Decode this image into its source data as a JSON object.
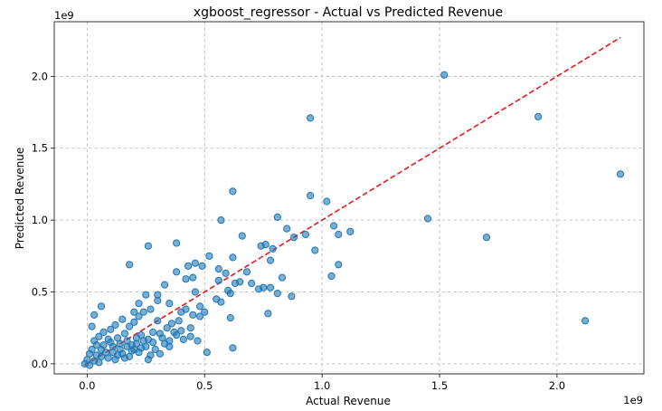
{
  "chart_data": {
    "type": "scatter",
    "title": "xgboost_regressor - Actual vs Predicted Revenue",
    "xlabel": "Actual Revenue",
    "ylabel": "Predicted Revenue",
    "x_offset_label": "1e9",
    "y_offset_label": "1e9",
    "xlim": [
      -0.14,
      2.37
    ],
    "ylim": [
      -0.07,
      2.38
    ],
    "x_ticks": [
      0.0,
      0.5,
      1.0,
      1.5,
      2.0
    ],
    "x_tick_labels": [
      "0.0",
      "0.5",
      "1.0",
      "1.5",
      "2.0"
    ],
    "y_ticks": [
      0.0,
      0.5,
      1.0,
      1.5,
      2.0
    ],
    "y_tick_labels": [
      "0.0",
      "0.5",
      "1.0",
      "1.5",
      "2.0"
    ],
    "grid": true,
    "units_note": "values in units of 1e9",
    "point_color": "#1f77b4",
    "reference_line": {
      "color": "#e41a1c",
      "style": "dashed",
      "x": [
        -0.01,
        2.27
      ],
      "y": [
        -0.01,
        2.27
      ]
    },
    "series": [
      {
        "points": [
          [
            1.52,
            2.01
          ],
          [
            0.95,
            1.71
          ],
          [
            1.92,
            1.72
          ],
          [
            2.27,
            1.32
          ],
          [
            0.62,
            1.2
          ],
          [
            0.95,
            1.17
          ],
          [
            1.02,
            1.13
          ],
          [
            0.81,
            1.02
          ],
          [
            1.45,
            1.01
          ],
          [
            0.57,
            1.0
          ],
          [
            1.05,
            0.96
          ],
          [
            0.85,
            0.94
          ],
          [
            1.12,
            0.92
          ],
          [
            1.07,
            0.9
          ],
          [
            0.66,
            0.89
          ],
          [
            0.88,
            0.88
          ],
          [
            1.7,
            0.88
          ],
          [
            0.93,
            0.9
          ],
          [
            0.38,
            0.84
          ],
          [
            0.26,
            0.82
          ],
          [
            0.76,
            0.83
          ],
          [
            0.74,
            0.82
          ],
          [
            0.79,
            0.8
          ],
          [
            0.97,
            0.79
          ],
          [
            0.52,
            0.75
          ],
          [
            0.62,
            0.74
          ],
          [
            0.78,
            0.72
          ],
          [
            0.18,
            0.69
          ],
          [
            1.07,
            0.69
          ],
          [
            0.46,
            0.7
          ],
          [
            0.49,
            0.68
          ],
          [
            0.43,
            0.68
          ],
          [
            0.56,
            0.66
          ],
          [
            0.68,
            0.64
          ],
          [
            0.38,
            0.64
          ],
          [
            0.59,
            0.63
          ],
          [
            1.04,
            0.61
          ],
          [
            0.83,
            0.6
          ],
          [
            0.45,
            0.6
          ],
          [
            0.42,
            0.59
          ],
          [
            0.33,
            0.55
          ],
          [
            0.56,
            0.58
          ],
          [
            0.65,
            0.57
          ],
          [
            0.63,
            0.56
          ],
          [
            0.7,
            0.56
          ],
          [
            0.75,
            0.53
          ],
          [
            0.78,
            0.53
          ],
          [
            0.73,
            0.52
          ],
          [
            0.6,
            0.51
          ],
          [
            0.61,
            0.49
          ],
          [
            0.81,
            0.49
          ],
          [
            0.87,
            0.47
          ],
          [
            0.3,
            0.48
          ],
          [
            0.25,
            0.48
          ],
          [
            0.46,
            0.5
          ],
          [
            0.55,
            0.45
          ],
          [
            0.57,
            0.43
          ],
          [
            0.35,
            0.42
          ],
          [
            0.06,
            0.4
          ],
          [
            0.4,
            0.36
          ],
          [
            0.77,
            0.35
          ],
          [
            0.5,
            0.36
          ],
          [
            0.48,
            0.33
          ],
          [
            0.03,
            0.34
          ],
          [
            0.61,
            0.32
          ],
          [
            2.12,
            0.3
          ],
          [
            0.22,
            0.33
          ],
          [
            0.3,
            0.3
          ],
          [
            0.41,
            0.17
          ],
          [
            0.62,
            0.11
          ],
          [
            0.51,
            0.08
          ],
          [
            0.47,
            0.16
          ],
          [
            0.35,
            0.12
          ],
          [
            0.38,
            0.2
          ],
          [
            0.44,
            0.25
          ],
          [
            0.31,
            0.07
          ],
          [
            0.28,
            0.22
          ],
          [
            0.26,
            0.03
          ],
          [
            0.24,
            0.36
          ],
          [
            0.2,
            0.29
          ],
          [
            0.18,
            0.26
          ],
          [
            0.15,
            0.31
          ],
          [
            0.12,
            0.27
          ],
          [
            0.1,
            0.24
          ],
          [
            0.02,
            0.26
          ],
          [
            0.07,
            0.22
          ],
          [
            0.16,
            0.21
          ],
          [
            0.21,
            0.18
          ],
          [
            0.24,
            0.16
          ],
          [
            0.14,
            0.14
          ],
          [
            0.11,
            0.12
          ],
          [
            0.09,
            0.17
          ],
          [
            0.05,
            0.19
          ],
          [
            0.04,
            0.13
          ],
          [
            0.02,
            0.1
          ],
          [
            0.01,
            0.07
          ],
          [
            0.0,
            0.03
          ],
          [
            -0.01,
            0.0
          ],
          [
            0.01,
            -0.01
          ],
          [
            0.03,
            0.02
          ],
          [
            0.06,
            0.05
          ],
          [
            0.08,
            0.08
          ],
          [
            0.12,
            0.03
          ],
          [
            0.15,
            0.07
          ],
          [
            0.18,
            0.05
          ],
          [
            0.2,
            0.1
          ],
          [
            0.22,
            0.08
          ],
          [
            0.25,
            0.12
          ],
          [
            0.28,
            0.15
          ],
          [
            0.32,
            0.18
          ],
          [
            0.34,
            0.25
          ],
          [
            0.36,
            0.28
          ],
          [
            0.13,
            0.18
          ],
          [
            0.17,
            0.16
          ],
          [
            0.19,
            0.13
          ],
          [
            0.23,
            0.2
          ],
          [
            0.27,
            0.06
          ],
          [
            0.29,
            0.1
          ],
          [
            0.33,
            0.14
          ],
          [
            0.37,
            0.22
          ],
          [
            0.39,
            0.3
          ],
          [
            0.42,
            0.38
          ],
          [
            0.45,
            0.34
          ],
          [
            0.48,
            0.4
          ],
          [
            0.3,
            0.44
          ],
          [
            0.27,
            0.38
          ],
          [
            0.22,
            0.42
          ],
          [
            0.2,
            0.36
          ],
          [
            0.04,
            0.06
          ],
          [
            0.06,
            0.1
          ],
          [
            0.09,
            0.04
          ],
          [
            0.11,
            0.08
          ],
          [
            0.14,
            0.1
          ],
          [
            0.16,
            0.04
          ],
          [
            0.19,
            0.09
          ],
          [
            0.07,
            0.13
          ],
          [
            0.03,
            0.16
          ],
          [
            0.05,
            0.01
          ],
          [
            0.1,
            0.15
          ],
          [
            0.13,
            0.06
          ],
          [
            0.17,
            0.12
          ],
          [
            0.21,
            0.14
          ],
          [
            0.23,
            0.11
          ],
          [
            0.26,
            0.17
          ],
          [
            0.31,
            0.21
          ],
          [
            0.35,
            0.16
          ],
          [
            0.4,
            0.23
          ],
          [
            0.44,
            0.19
          ]
        ]
      }
    ]
  }
}
